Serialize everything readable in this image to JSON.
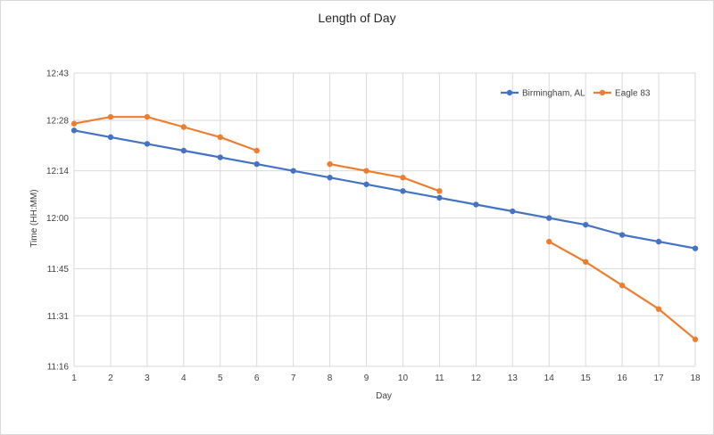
{
  "chart_data": {
    "type": "line",
    "title": "Length of Day",
    "xlabel": "Day",
    "ylabel": "Time (HH:MM)",
    "x": [
      1,
      2,
      3,
      4,
      5,
      6,
      7,
      8,
      9,
      10,
      11,
      12,
      13,
      14,
      15,
      16,
      17,
      18
    ],
    "x_tick_labels": [
      "1",
      "2",
      "3",
      "4",
      "5",
      "6",
      "7",
      "8",
      "9",
      "10",
      "11",
      "12",
      "13",
      "14",
      "15",
      "16",
      "17",
      "18"
    ],
    "y_unit": "minutes",
    "ylim": [
      676,
      763
    ],
    "y_ticks": [
      676,
      691,
      705,
      720,
      734,
      749,
      763
    ],
    "y_tick_labels": [
      "11:16",
      "11:31",
      "11:45",
      "12:00",
      "12:14",
      "12:28",
      "12:43"
    ],
    "grid": true,
    "legend_position": "top-right",
    "series": [
      {
        "name": "Birmingham, AL",
        "color": "#4472c4",
        "values": [
          746,
          744,
          742,
          740,
          738,
          736,
          734,
          732,
          730,
          728,
          726,
          724,
          722,
          720,
          718,
          715,
          713,
          711
        ]
      },
      {
        "name": "Eagle 83",
        "color": "#ed7d31",
        "values": [
          748,
          750,
          750,
          747,
          744,
          740,
          null,
          736,
          734,
          732,
          728,
          null,
          null,
          713,
          707,
          700,
          693,
          684
        ]
      }
    ]
  }
}
